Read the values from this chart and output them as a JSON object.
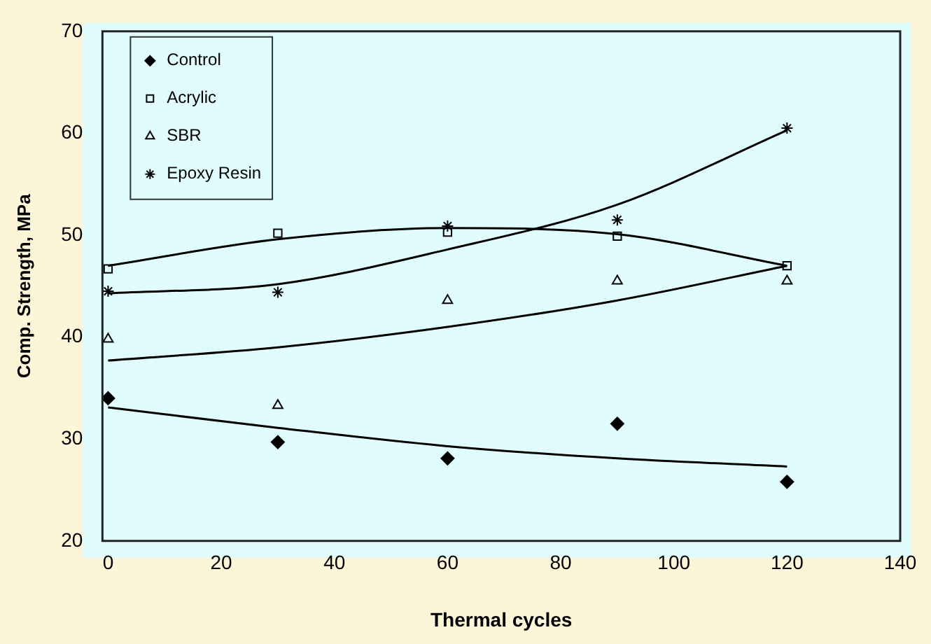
{
  "chart_data": {
    "type": "scatter",
    "xlabel": "Thermal cycles",
    "ylabel": "Comp. Strength, MPa",
    "xlim": [
      -1,
      140
    ],
    "xticks": [
      0,
      20,
      40,
      60,
      80,
      100,
      120,
      140
    ],
    "ylim": [
      20,
      70
    ],
    "yticks": [
      20,
      30,
      40,
      50,
      60,
      70
    ],
    "grid": false,
    "legend": "top left",
    "series": [
      {
        "name": "Control",
        "color": "#000000",
        "marker": "diamond",
        "x": [
          0,
          30,
          60,
          90,
          120
        ],
        "values": [
          34.0,
          29.7,
          28.1,
          31.5,
          25.8
        ]
      },
      {
        "name": "Acrylic",
        "color": "#000000",
        "marker": "square",
        "x": [
          0,
          30,
          60,
          90,
          120
        ],
        "values": [
          46.7,
          50.2,
          50.3,
          49.9,
          47.0
        ]
      },
      {
        "name": "SBR",
        "color": "#000000",
        "marker": "triangle",
        "x": [
          0,
          30,
          60,
          90,
          120
        ],
        "values": [
          39.8,
          33.3,
          43.6,
          45.5,
          45.5
        ]
      },
      {
        "name": "Epoxy Resin",
        "color": "#000000",
        "marker": "cross",
        "x": [
          0,
          30,
          60,
          90,
          120
        ],
        "values": [
          44.5,
          44.4,
          50.9,
          51.5,
          60.5
        ]
      },
      {
        "type": "line",
        "color": "#000000",
        "marker": "none",
        "x": [
          0,
          30,
          60,
          90,
          120
        ],
        "values": [
          33.1,
          31.1,
          29.3,
          28.1,
          27.3
        ]
      },
      {
        "type": "line",
        "color": "#000000",
        "marker": "none",
        "x": [
          0,
          30,
          60,
          90,
          120
        ],
        "values": [
          47.0,
          49.6,
          50.7,
          50.1,
          47.0
        ]
      },
      {
        "type": "line",
        "color": "#000000",
        "marker": "none",
        "x": [
          0,
          30,
          60,
          90,
          120
        ],
        "values": [
          37.7,
          39.0,
          41.0,
          43.6,
          47.0
        ]
      },
      {
        "type": "line",
        "color": "#000000",
        "marker": "none",
        "x": [
          0,
          30,
          60,
          90,
          120
        ],
        "values": [
          44.3,
          45.2,
          48.6,
          53.0,
          60.3
        ]
      }
    ]
  }
}
